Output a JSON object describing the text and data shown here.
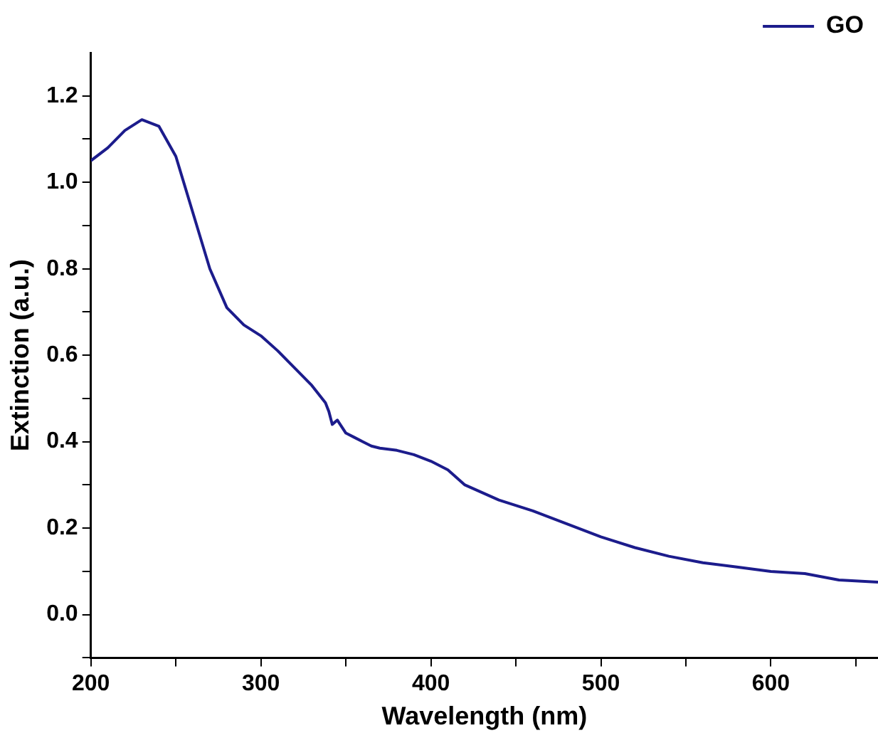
{
  "chart_data": {
    "type": "line",
    "xlabel": "Wavelength (nm)",
    "ylabel": "Extinction (a.u.)",
    "x": [
      200,
      210,
      220,
      230,
      240,
      250,
      260,
      270,
      280,
      290,
      300,
      310,
      320,
      330,
      338,
      340,
      342,
      345,
      350,
      355,
      360,
      365,
      370,
      380,
      390,
      400,
      410,
      420,
      440,
      460,
      480,
      500,
      520,
      540,
      560,
      580,
      600,
      620,
      640,
      663
    ],
    "series": [
      {
        "name": "GO",
        "color": "#1c1c8c",
        "values": [
          1.05,
          1.08,
          1.12,
          1.145,
          1.13,
          1.06,
          0.93,
          0.8,
          0.71,
          0.67,
          0.645,
          0.61,
          0.57,
          0.53,
          0.49,
          0.47,
          0.44,
          0.45,
          0.42,
          0.41,
          0.4,
          0.39,
          0.385,
          0.38,
          0.37,
          0.355,
          0.335,
          0.3,
          0.265,
          0.24,
          0.21,
          0.18,
          0.155,
          0.135,
          0.12,
          0.11,
          0.1,
          0.095,
          0.08,
          0.075
        ]
      }
    ],
    "xlim": [
      200,
      663
    ],
    "xticks": [
      200,
      {
        "value": 250,
        "label": null
      },
      300,
      {
        "value": 350,
        "label": null
      },
      400,
      {
        "value": 450,
        "label": null
      },
      500,
      {
        "value": 550,
        "label": null
      },
      600,
      {
        "value": 650,
        "label": null
      }
    ],
    "ylim": [
      -0.1,
      1.3
    ],
    "yticks": [
      {
        "value": -0.1,
        "label": null
      },
      {
        "value": 0,
        "label": "0.0"
      },
      {
        "value": 0.1,
        "label": null
      },
      0.2,
      {
        "value": 0.3,
        "label": null
      },
      0.4,
      {
        "value": 0.5,
        "label": null
      },
      0.6,
      {
        "value": 0.7,
        "label": null
      },
      0.8,
      {
        "value": 0.9,
        "label": null
      },
      {
        "value": 1,
        "label": "1.0"
      },
      {
        "value": 1.1,
        "label": null
      },
      1.2
    ],
    "grid": false,
    "legend": "top right",
    "marker": "none",
    "line_style": "solid"
  }
}
